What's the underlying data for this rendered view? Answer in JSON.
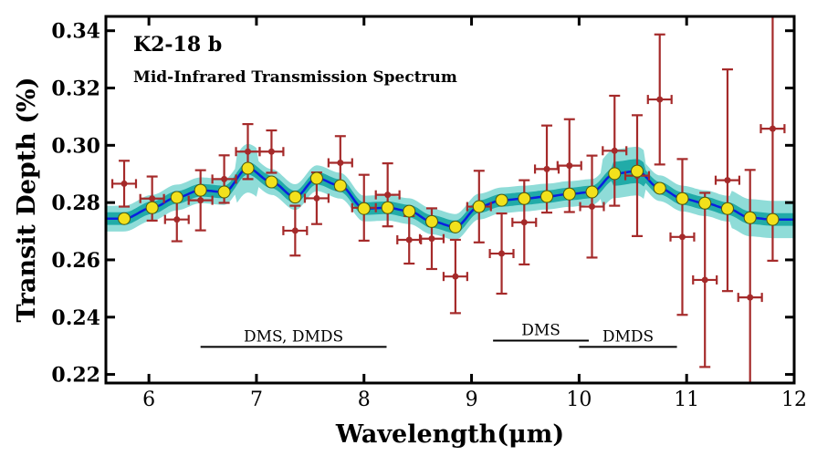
{
  "chart_data": {
    "type": "scatter",
    "title": "K2-18 b",
    "subtitle": "Mid-Infrared Transmission Spectrum",
    "xlabel": "Wavelength(μm)",
    "ylabel": "Transit Depth (%)",
    "xlim": [
      5.6,
      12.0
    ],
    "ylim": [
      0.217,
      0.345
    ],
    "xticks": [
      "6",
      "7",
      "8",
      "9",
      "10",
      "11",
      "12"
    ],
    "yticks": [
      "0.22",
      "0.24",
      "0.26",
      "0.28",
      "0.30",
      "0.32",
      "0.34"
    ],
    "grid": false,
    "colors": {
      "data": "#a52a2a",
      "model_line": "#0a1ee0",
      "band_1sigma": "#21aba8",
      "band_2sigma": "#8fdcd8",
      "binned_model": "#f2e11c"
    },
    "observed": {
      "x": [
        5.77,
        6.03,
        6.26,
        6.48,
        6.7,
        6.92,
        7.14,
        7.36,
        7.56,
        7.78,
        8.0,
        8.22,
        8.42,
        8.63,
        8.85,
        9.07,
        9.28,
        9.49,
        9.7,
        9.91,
        10.12,
        10.33,
        10.54,
        10.75,
        10.96,
        11.17,
        11.38,
        11.59,
        11.8
      ],
      "y": [
        0.2866,
        0.2814,
        0.2741,
        0.2808,
        0.2882,
        0.2978,
        0.2978,
        0.2702,
        0.2815,
        0.2939,
        0.2782,
        0.2827,
        0.267,
        0.2674,
        0.2542,
        0.2786,
        0.2622,
        0.2731,
        0.2917,
        0.2929,
        0.2786,
        0.2981,
        0.2894,
        0.316,
        0.268,
        0.253,
        0.2878,
        0.2469,
        0.3058
      ],
      "yerr": [
        0.008,
        0.0077,
        0.0076,
        0.0105,
        0.0083,
        0.0096,
        0.0074,
        0.0087,
        0.009,
        0.0093,
        0.0115,
        0.011,
        0.0083,
        0.0106,
        0.0128,
        0.0125,
        0.014,
        0.0147,
        0.0152,
        0.0162,
        0.0178,
        0.0192,
        0.0211,
        0.0227,
        0.0272,
        0.0304,
        0.0387,
        0.0445,
        0.0461
      ],
      "xerr": 0.11
    },
    "binned_model": {
      "x": [
        5.77,
        6.03,
        6.26,
        6.48,
        6.7,
        6.92,
        7.14,
        7.36,
        7.56,
        7.78,
        8.0,
        8.22,
        8.42,
        8.63,
        8.85,
        9.07,
        9.28,
        9.49,
        9.7,
        9.91,
        10.12,
        10.33,
        10.54,
        10.75,
        10.96,
        11.17,
        11.38,
        11.59,
        11.8
      ],
      "y": [
        0.2744,
        0.2782,
        0.2818,
        0.2843,
        0.2837,
        0.292,
        0.2872,
        0.2819,
        0.2885,
        0.2859,
        0.2779,
        0.2782,
        0.277,
        0.2734,
        0.2715,
        0.2786,
        0.2808,
        0.2814,
        0.2821,
        0.283,
        0.2837,
        0.2901,
        0.291,
        0.285,
        0.2814,
        0.2798,
        0.2779,
        0.2747,
        0.2741
      ]
    },
    "annotations": [
      {
        "text": "DMS, DMDS",
        "x_range": [
          6.48,
          8.21
        ],
        "y": 0.2296
      },
      {
        "text": "DMS",
        "x_range": [
          9.2,
          10.09
        ],
        "y": 0.2318
      },
      {
        "text": "DMDS",
        "x_range": [
          10.0,
          10.91
        ],
        "y": 0.2296
      }
    ]
  }
}
